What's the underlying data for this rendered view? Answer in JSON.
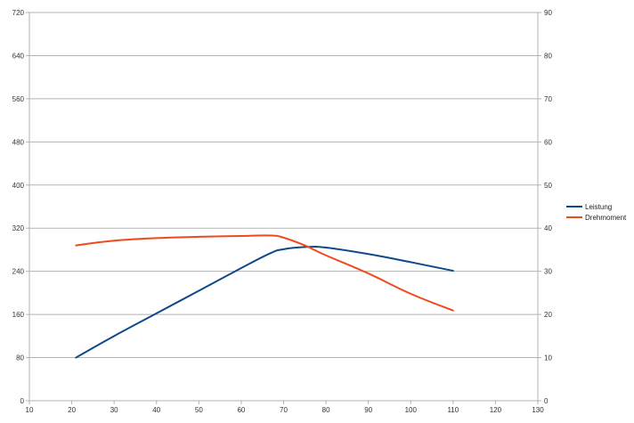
{
  "chart_data": {
    "type": "line",
    "x": [
      21,
      30,
      40,
      50,
      60,
      67,
      70,
      75,
      80,
      90,
      100,
      110
    ],
    "xlim": [
      10,
      130
    ],
    "xticks": [
      "10",
      "20",
      "30",
      "40",
      "50",
      "60",
      "70",
      "80",
      "90",
      "100",
      "110",
      "120",
      "130"
    ],
    "y_left_lim": [
      0,
      720
    ],
    "y_left_ticks": [
      "0",
      "80",
      "160",
      "240",
      "320",
      "400",
      "480",
      "560",
      "640",
      "720"
    ],
    "y_right_lim": [
      0,
      90
    ],
    "y_right_ticks": [
      "0",
      "10",
      "20",
      "30",
      "40",
      "50",
      "60",
      "70",
      "80",
      "90"
    ],
    "grid": "horizontal",
    "legend_position": "right",
    "series": [
      {
        "name": "Leistung",
        "axis": "left",
        "color": "#0e4a8a",
        "x": [
          21,
          30,
          40,
          50,
          60,
          67,
          70,
          75,
          80,
          90,
          100,
          110
        ],
        "values": [
          80,
          120,
          162,
          204,
          246,
          274,
          281,
          285,
          284,
          272,
          257,
          241
        ]
      },
      {
        "name": "Drehmoment",
        "axis": "right",
        "color": "#f04a1c",
        "x": [
          21,
          30,
          40,
          50,
          60,
          67,
          70,
          75,
          80,
          90,
          100,
          110
        ],
        "values": [
          36.0,
          37.1,
          37.7,
          38.0,
          38.2,
          38.3,
          37.8,
          36.0,
          33.7,
          29.5,
          24.8,
          20.9
        ]
      }
    ]
  }
}
